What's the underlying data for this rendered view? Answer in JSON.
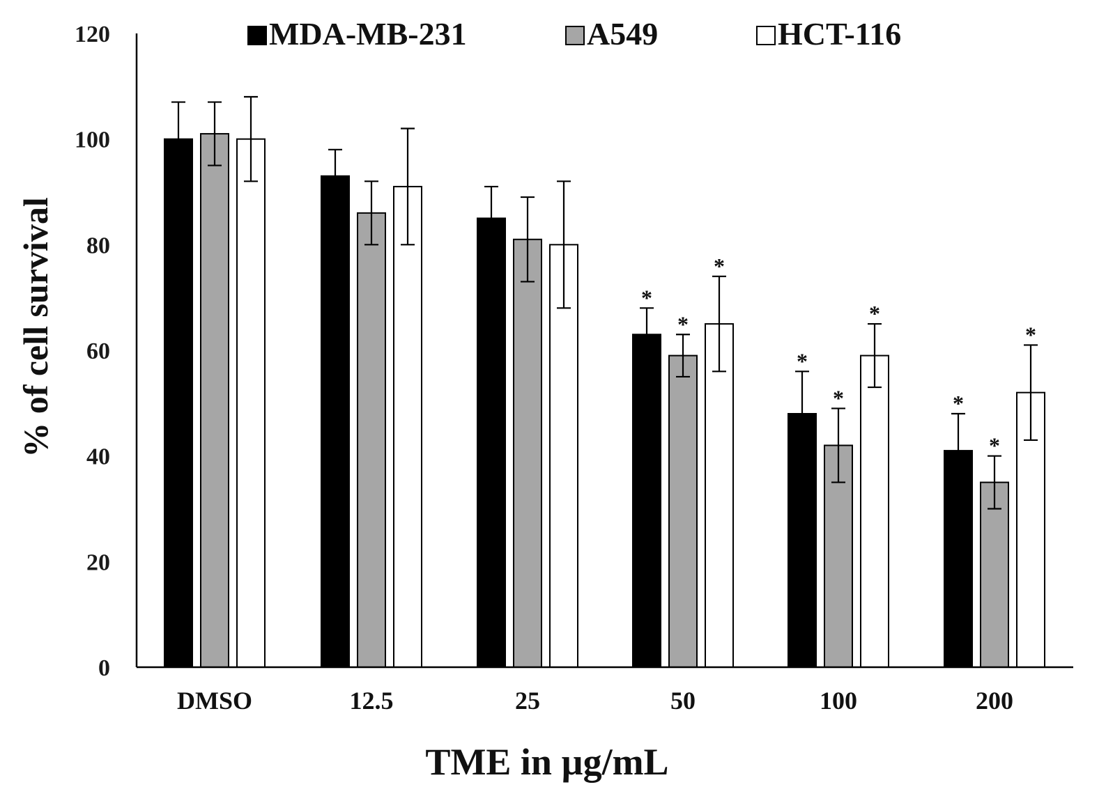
{
  "chart_data": {
    "type": "bar",
    "title": "",
    "xlabel": "TME in µg/mL",
    "ylabel": "% of cell survival",
    "ylim": [
      0,
      120
    ],
    "yticks": [
      0,
      20,
      40,
      60,
      80,
      100,
      120
    ],
    "grid": false,
    "legend_position": "top",
    "categories": [
      "DMSO",
      "12.5",
      "25",
      "50",
      "100",
      "200"
    ],
    "series": [
      {
        "name": "MDA-MB-231",
        "color": "#000000",
        "values": [
          100,
          93,
          85,
          63,
          48,
          41
        ],
        "errors": [
          7,
          5,
          6,
          5,
          8,
          7
        ],
        "significant": [
          false,
          false,
          false,
          true,
          true,
          true
        ]
      },
      {
        "name": "A549",
        "color": "#a6a6a6",
        "values": [
          101,
          86,
          81,
          59,
          42,
          35
        ],
        "errors": [
          6,
          6,
          8,
          4,
          7,
          5
        ],
        "significant": [
          false,
          false,
          false,
          true,
          true,
          true
        ]
      },
      {
        "name": "HCT-116",
        "color": "#ffffff",
        "values": [
          100,
          91,
          80,
          65,
          59,
          52
        ],
        "errors": [
          8,
          11,
          12,
          9,
          6,
          9
        ],
        "significant": [
          false,
          false,
          false,
          true,
          true,
          true
        ]
      }
    ],
    "significance_marker": "*"
  }
}
